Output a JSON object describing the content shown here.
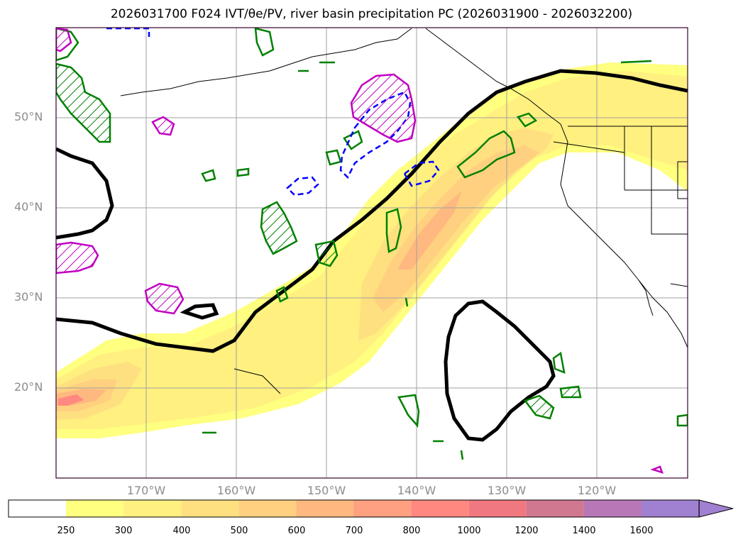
{
  "title": "2026031700 F024 IVT/θe/PV, river basin precipitation PC (2026031900 - 2026032200)",
  "lat_labels": [
    "50°N",
    "40°N",
    "30°N",
    "20°N"
  ],
  "lon_labels": [
    "170°W",
    "160°W",
    "150°W",
    "140°W",
    "130°W",
    "120°W"
  ],
  "colorbar": {
    "labels": [
      "250",
      "300",
      "400",
      "500",
      "600",
      "700",
      "800",
      "1000",
      "1200",
      "1400",
      "1600"
    ],
    "colors": [
      "#ffffff",
      "#ffff80",
      "#fff080",
      "#ffe080",
      "#ffd080",
      "#ffb880",
      "#ffa080",
      "#ff8880",
      "#f07880",
      "#d07890",
      "#b878b8",
      "#a080d0"
    ]
  },
  "legend_colors": {
    "ivt_fill_low": "#ffff80",
    "ivt_fill_high": "#ff8880",
    "theta_e_contour": "#000000",
    "pv_positive": "#008000",
    "pv_negative": "#0000ff",
    "pv_magenta": "#c000c0"
  }
}
